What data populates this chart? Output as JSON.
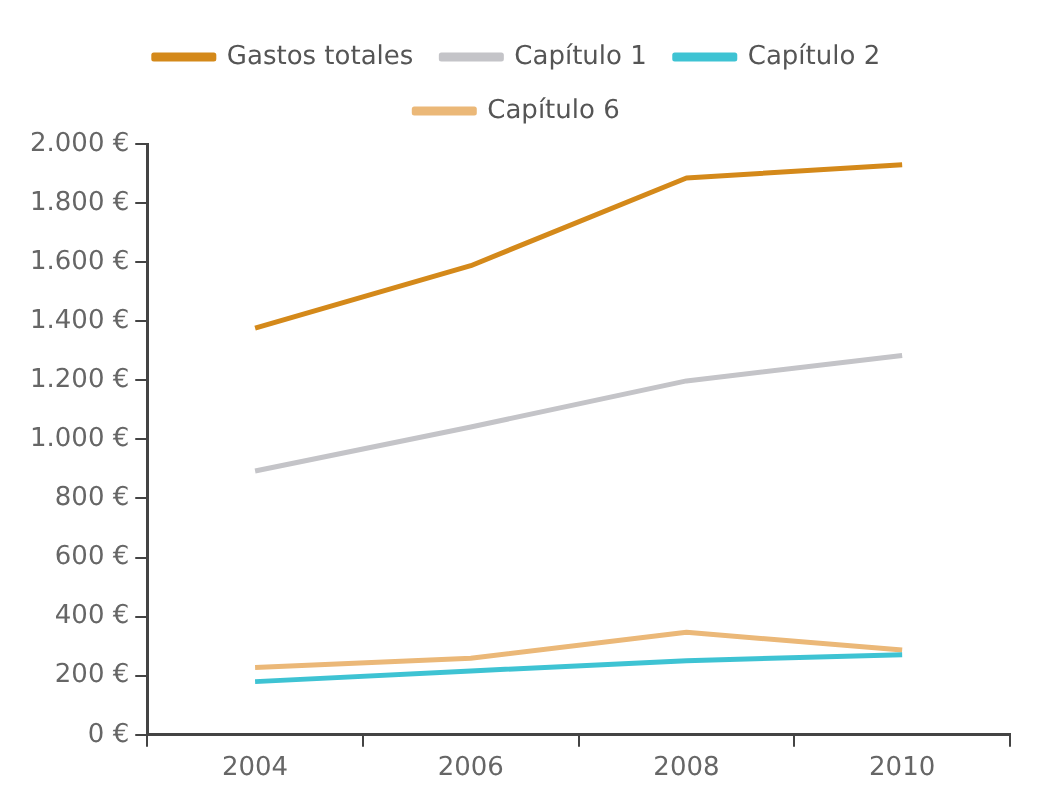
{
  "chart_data": {
    "type": "line",
    "categories": [
      "2004",
      "2006",
      "2008",
      "2010"
    ],
    "series": [
      {
        "name": "Gastos totales",
        "color": "#d4891a",
        "values": [
          1377,
          1588,
          1885,
          1930
        ]
      },
      {
        "name": "Capítulo 1",
        "color": "#c4c4c8",
        "values": [
          893,
          1042,
          1198,
          1284
        ]
      },
      {
        "name": "Capítulo 2",
        "color": "#3ec3d3",
        "values": [
          180,
          216,
          251,
          271
        ]
      },
      {
        "name": "Capítulo 6",
        "color": "#ebb878",
        "values": [
          228,
          259,
          347,
          287
        ]
      }
    ],
    "ylim": [
      0,
      2000
    ],
    "yticks": [
      {
        "value": 0,
        "label": "0 €"
      },
      {
        "value": 200,
        "label": "200 €"
      },
      {
        "value": 400,
        "label": "400 €"
      },
      {
        "value": 600,
        "label": "600 €"
      },
      {
        "value": 800,
        "label": "800 €"
      },
      {
        "value": 1000,
        "label": "1.000 €"
      },
      {
        "value": 1200,
        "label": "1.200 €"
      },
      {
        "value": 1400,
        "label": "1.400 €"
      },
      {
        "value": 1600,
        "label": "1.600 €"
      },
      {
        "value": 1800,
        "label": "1.800 €"
      },
      {
        "value": 2000,
        "label": "2.000 €"
      }
    ],
    "grid": false,
    "legend": "top",
    "marker": "none",
    "line_style": "solid"
  }
}
